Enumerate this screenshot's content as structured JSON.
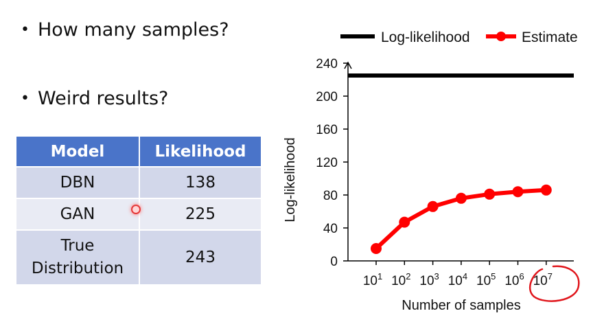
{
  "bullets": [
    "How many samples?",
    "Weird results?"
  ],
  "table": {
    "headers": [
      "Model",
      "Likelihood"
    ],
    "rows": [
      {
        "model": "DBN",
        "likelihood": "138"
      },
      {
        "model": "GAN",
        "likelihood": "225"
      },
      {
        "model_line1": "True",
        "model_line2": "Distribution",
        "likelihood": "243"
      }
    ],
    "header_color": "#4a74c9"
  },
  "chart_data": {
    "type": "line",
    "xlabel": "Number of samples",
    "ylabel": "Log-likelihood",
    "ylim": [
      0,
      240
    ],
    "yticks": [
      "0",
      "40",
      "80",
      "120",
      "160",
      "200",
      "240"
    ],
    "x_tick_labels": [
      {
        "base": "10",
        "exp": "1"
      },
      {
        "base": "10",
        "exp": "2"
      },
      {
        "base": "10",
        "exp": "3"
      },
      {
        "base": "10",
        "exp": "4"
      },
      {
        "base": "10",
        "exp": "5"
      },
      {
        "base": "10",
        "exp": "6"
      },
      {
        "base": "10",
        "exp": "7"
      }
    ],
    "x": [
      10,
      100,
      1000,
      10000,
      100000,
      1000000,
      10000000
    ],
    "x_scale": "log",
    "legend_position": "top",
    "series": [
      {
        "name": "Log-likelihood",
        "kind": "horizontal-line",
        "value": 225,
        "color": "#000000"
      },
      {
        "name": "Estimate",
        "kind": "line-markers",
        "values": [
          15,
          47,
          66,
          76,
          81,
          84,
          86
        ],
        "color": "#ff0000"
      }
    ],
    "annotation": {
      "kind": "hand-drawn circle",
      "target_tick": "10^7",
      "color": "#e0151b"
    }
  }
}
